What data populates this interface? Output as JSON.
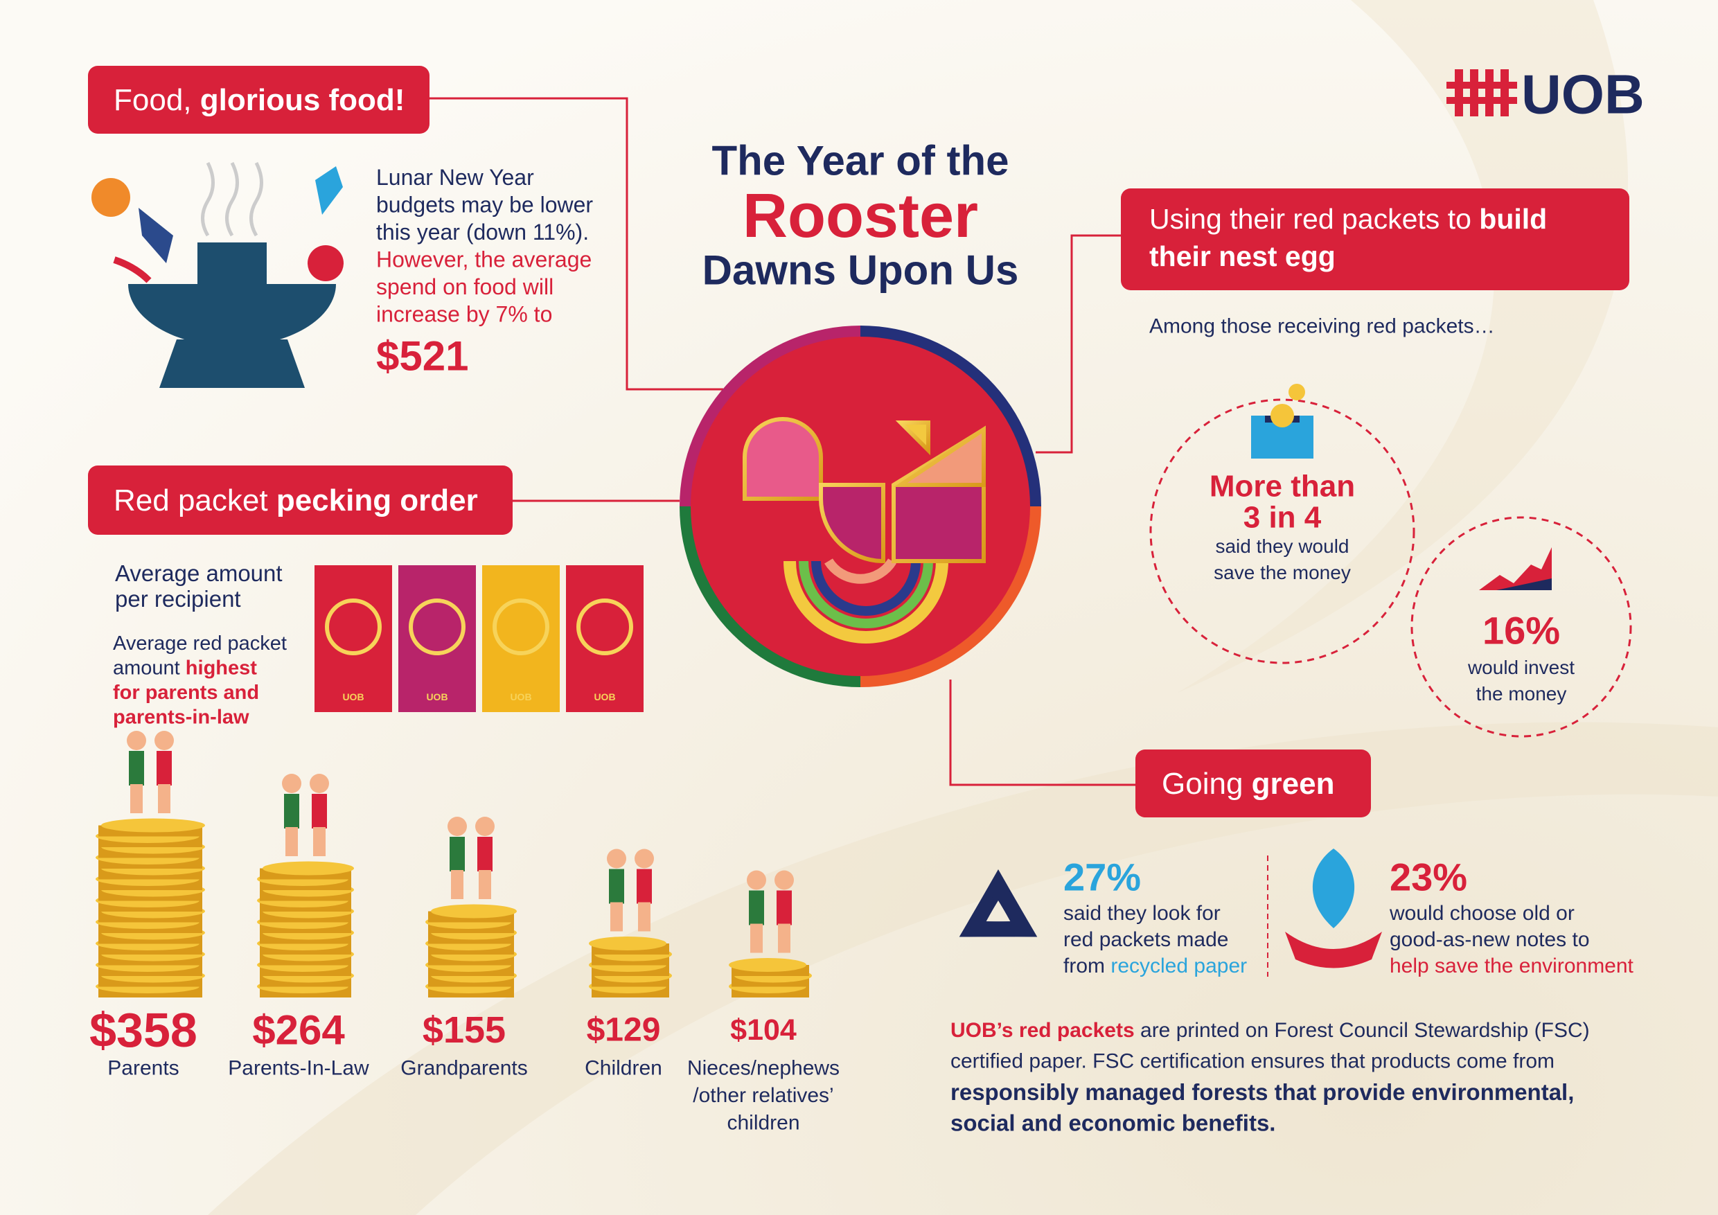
{
  "logo": "UOB",
  "title": [
    "The Year of the",
    "Rooster",
    "Dawns Upon Us"
  ],
  "food": {
    "heading": [
      [
        "Food, ",
        "glorious food!"
      ]
    ],
    "lines": [
      [
        "Lunar New Year"
      ],
      [
        "budgets may be lower"
      ],
      [
        "this year (down 11%)."
      ],
      [
        "However, the average"
      ],
      [
        "spend on food will"
      ],
      [
        "increase by 7% to"
      ]
    ],
    "amount": "$521"
  },
  "pecking": {
    "heading": [
      [
        "Red packet ",
        "pecking order"
      ]
    ],
    "subtitle": [
      [
        "Average amount"
      ],
      [
        "per recipient"
      ]
    ],
    "note": [
      [
        "Average red packet"
      ],
      [
        "amount ",
        "highest"
      ],
      [
        "for parents and"
      ],
      [
        "parents-in-law"
      ]
    ],
    "recipients": [
      {
        "amount": "$358",
        "label": [
          "Parents"
        ]
      },
      {
        "amount": "$264",
        "label": [
          "Parents-In-Law"
        ]
      },
      {
        "amount": "$155",
        "label": [
          "Grandparents"
        ]
      },
      {
        "amount": "$129",
        "label": [
          "Children"
        ]
      },
      {
        "amount": "$104",
        "label": [
          "Nieces/nephews",
          "/other relatives’",
          "children"
        ]
      }
    ]
  },
  "nest": {
    "heading": [
      [
        "Using their red packets to ",
        "build"
      ],
      [
        "their nest egg"
      ]
    ],
    "intro": "Among those receiving red packets…",
    "save": {
      "value": [
        "More than",
        "3 in 4"
      ],
      "lines": [
        [
          "said they would"
        ],
        [
          "save the money"
        ]
      ]
    },
    "invest": {
      "value": "16%",
      "lines": [
        [
          "would invest"
        ],
        [
          "the money"
        ]
      ]
    }
  },
  "green": {
    "heading": [
      [
        "Going ",
        "green"
      ]
    ],
    "recycled": {
      "value": "27%",
      "lines": [
        [
          "said they look for"
        ],
        [
          "red packets made"
        ],
        [
          "from ",
          "recycled paper"
        ]
      ]
    },
    "notes": {
      "value": "23%",
      "lines": [
        [
          "would choose old or"
        ],
        [
          "good-as-new notes to"
        ],
        [
          "help save the environment"
        ]
      ]
    },
    "fsc": [
      [
        "UOB’s red packets",
        " are printed on Forest Council Stewardship (FSC)"
      ],
      [
        "certified paper. FSC certification ensures that products come from"
      ],
      [
        "responsibly managed forests that provide environmental,"
      ],
      [
        "social and economic benefits."
      ]
    ]
  }
}
